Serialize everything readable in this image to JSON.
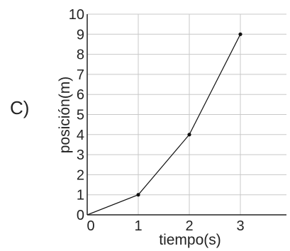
{
  "option_label": "C)",
  "chart_data": {
    "type": "line",
    "xlabel": "tiempo(s)",
    "ylabel": "posición(m)",
    "xlim": [
      0,
      4
    ],
    "ylim": [
      0,
      10
    ],
    "x_ticks": [
      "0",
      "1",
      "2",
      "3"
    ],
    "y_ticks": [
      "0",
      "1",
      "2",
      "3",
      "4",
      "5",
      "6",
      "7",
      "8",
      "9",
      "10"
    ],
    "grid": true,
    "series": [
      {
        "x": [
          0,
          1,
          2,
          3
        ],
        "y": [
          0,
          1,
          4,
          9
        ],
        "marked_points": [
          1,
          2,
          3
        ],
        "color": "#111111"
      }
    ]
  }
}
